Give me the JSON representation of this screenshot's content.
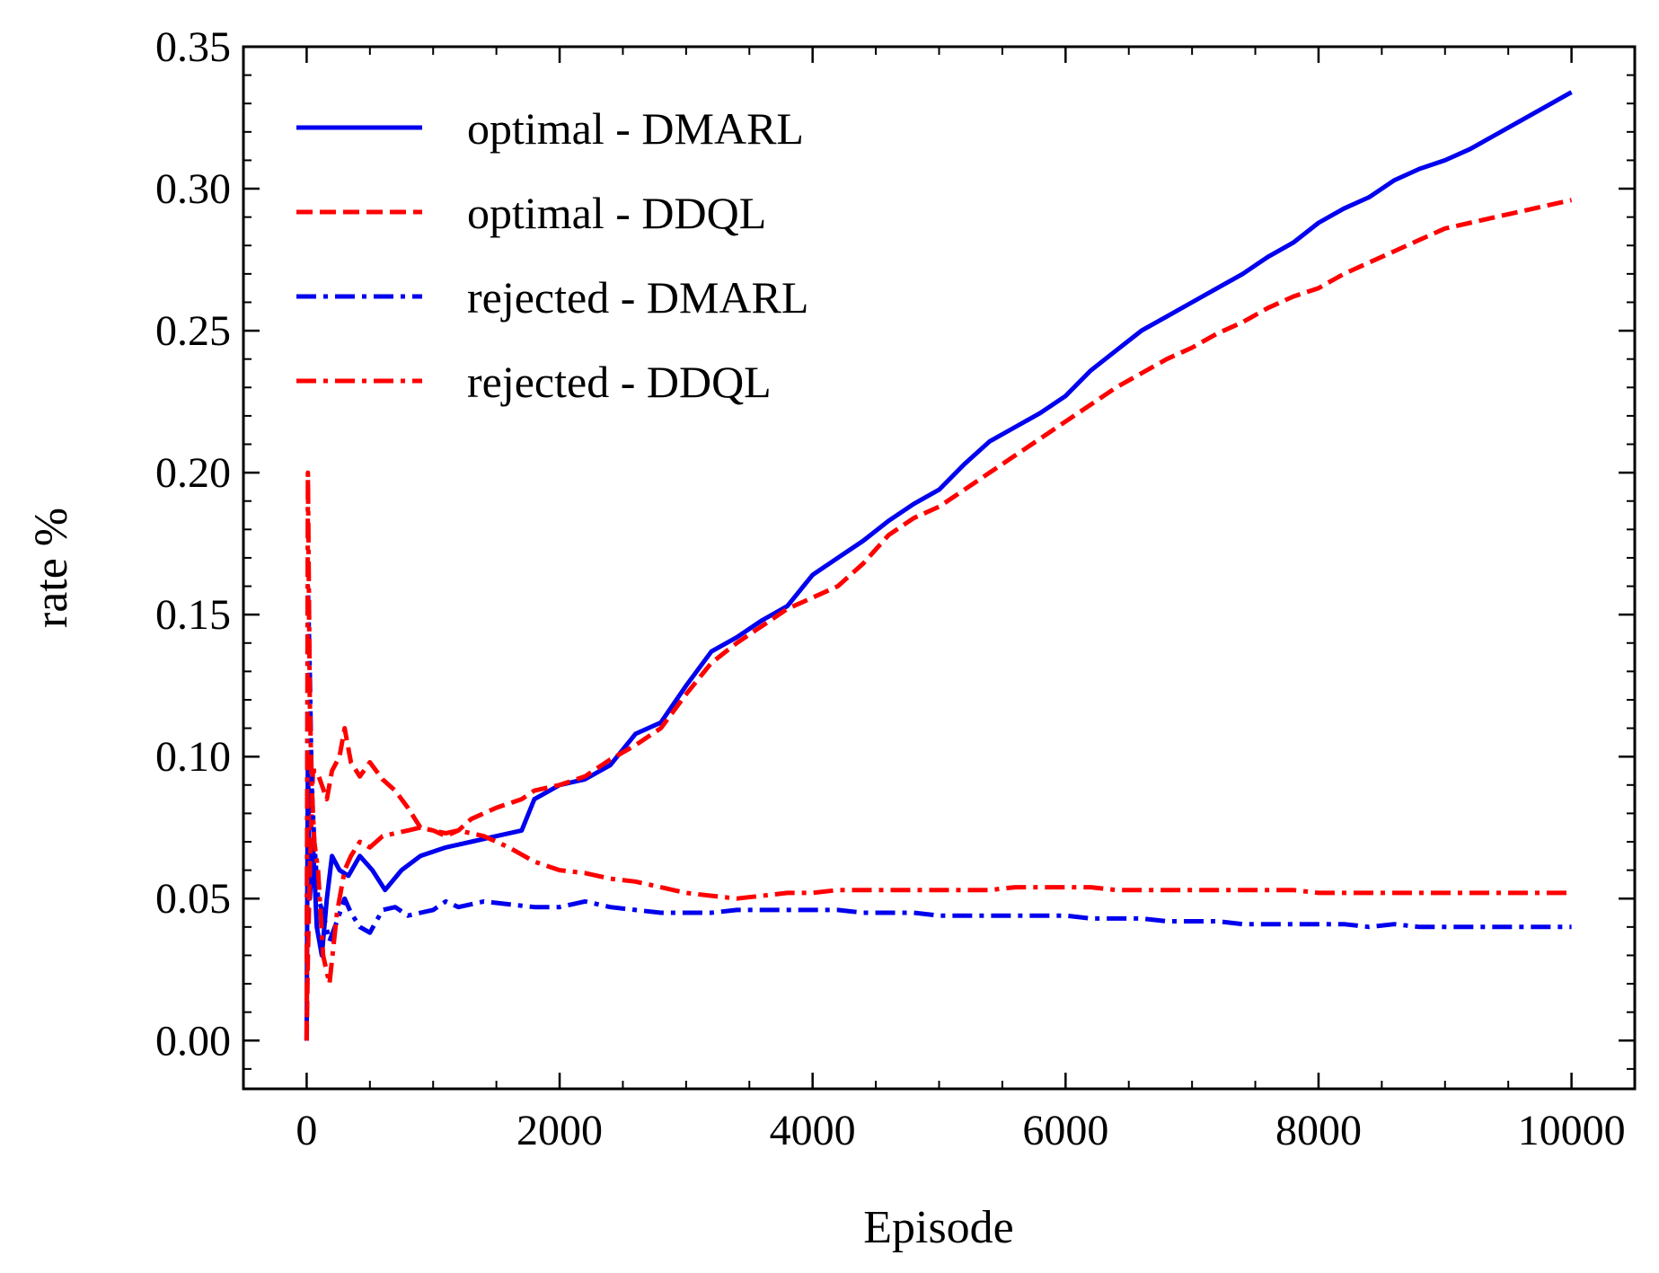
{
  "chart_data": {
    "type": "line",
    "title": "",
    "xlabel": "Episode",
    "ylabel": "rate %",
    "xlim": [
      -500,
      10500
    ],
    "ylim": [
      -0.017,
      0.35
    ],
    "xticks": [
      0,
      2000,
      4000,
      6000,
      8000,
      10000
    ],
    "xtick_labels": [
      "0",
      "2000",
      "4000",
      "6000",
      "8000",
      "10000"
    ],
    "yticks": [
      0.0,
      0.05,
      0.1,
      0.15,
      0.2,
      0.25,
      0.3,
      0.35
    ],
    "ytick_labels": [
      "0.00",
      "0.05",
      "0.10",
      "0.15",
      "0.20",
      "0.25",
      "0.30",
      "0.35"
    ],
    "grid": false,
    "legend_position": "top-left",
    "series": [
      {
        "name": "optimal - DMARL",
        "color": "#0000ee",
        "style": "solid",
        "x": [
          0,
          10,
          25,
          50,
          80,
          120,
          160,
          200,
          260,
          330,
          420,
          520,
          620,
          750,
          900,
          1100,
          1300,
          1500,
          1700,
          1800,
          2000,
          2200,
          2400,
          2600,
          2800,
          3000,
          3200,
          3400,
          3600,
          3800,
          4000,
          4200,
          4400,
          4600,
          4800,
          5000,
          5200,
          5400,
          5600,
          5800,
          6000,
          6200,
          6400,
          6600,
          6800,
          7000,
          7200,
          7400,
          7600,
          7800,
          8000,
          8200,
          8400,
          8600,
          8800,
          9000,
          9200,
          9400,
          9600,
          9800,
          10000
        ],
        "y": [
          0.0,
          0.1,
          0.05,
          0.07,
          0.04,
          0.03,
          0.05,
          0.065,
          0.06,
          0.058,
          0.065,
          0.06,
          0.053,
          0.06,
          0.065,
          0.068,
          0.07,
          0.072,
          0.074,
          0.085,
          0.09,
          0.092,
          0.097,
          0.108,
          0.112,
          0.125,
          0.137,
          0.142,
          0.148,
          0.153,
          0.164,
          0.17,
          0.176,
          0.183,
          0.189,
          0.194,
          0.203,
          0.211,
          0.216,
          0.221,
          0.227,
          0.236,
          0.243,
          0.25,
          0.255,
          0.26,
          0.265,
          0.27,
          0.276,
          0.281,
          0.288,
          0.293,
          0.297,
          0.303,
          0.307,
          0.31,
          0.314,
          0.319,
          0.324,
          0.329,
          0.334
        ]
      },
      {
        "name": "optimal - DDQL",
        "color": "#ff0000",
        "style": "dashed",
        "x": [
          0,
          10,
          25,
          50,
          80,
          120,
          160,
          200,
          260,
          300,
          350,
          420,
          500,
          600,
          700,
          800,
          900,
          1000,
          1100,
          1200,
          1300,
          1500,
          1700,
          1800,
          2000,
          2200,
          2400,
          2600,
          2800,
          3000,
          3200,
          3400,
          3600,
          3800,
          4000,
          4200,
          4400,
          4600,
          4800,
          5000,
          5200,
          5400,
          5600,
          5800,
          6000,
          6200,
          6400,
          6600,
          6800,
          7000,
          7200,
          7400,
          7600,
          7800,
          8000,
          8200,
          8400,
          8600,
          8800,
          9000,
          9200,
          9400,
          9600,
          9800,
          10000
        ],
        "y": [
          0.0,
          0.03,
          0.06,
          0.095,
          0.095,
          0.09,
          0.085,
          0.095,
          0.1,
          0.11,
          0.098,
          0.093,
          0.098,
          0.092,
          0.088,
          0.082,
          0.075,
          0.074,
          0.072,
          0.074,
          0.078,
          0.082,
          0.085,
          0.088,
          0.09,
          0.093,
          0.099,
          0.104,
          0.11,
          0.122,
          0.133,
          0.14,
          0.146,
          0.152,
          0.156,
          0.16,
          0.168,
          0.178,
          0.184,
          0.188,
          0.194,
          0.2,
          0.206,
          0.212,
          0.218,
          0.224,
          0.23,
          0.235,
          0.24,
          0.244,
          0.249,
          0.253,
          0.258,
          0.262,
          0.265,
          0.27,
          0.274,
          0.278,
          0.282,
          0.286,
          0.288,
          0.29,
          0.292,
          0.294,
          0.296
        ]
      },
      {
        "name": "rejected - DMARL",
        "color": "#0000ee",
        "style": "dashdot",
        "x": [
          0,
          10,
          25,
          40,
          60,
          90,
          130,
          180,
          240,
          300,
          350,
          420,
          500,
          600,
          700,
          800,
          900,
          1000,
          1100,
          1200,
          1400,
          1600,
          1800,
          2000,
          2200,
          2400,
          2600,
          2800,
          3000,
          3200,
          3400,
          3600,
          3800,
          4000,
          4200,
          4400,
          4600,
          4800,
          5000,
          5200,
          5400,
          5600,
          5800,
          6000,
          6200,
          6400,
          6600,
          6800,
          7000,
          7200,
          7400,
          7600,
          7800,
          8000,
          8200,
          8400,
          8600,
          8800,
          9000,
          9200,
          9400,
          9600,
          9800,
          10000
        ],
        "y": [
          0.0,
          0.16,
          0.13,
          0.09,
          0.07,
          0.05,
          0.045,
          0.035,
          0.042,
          0.05,
          0.045,
          0.04,
          0.038,
          0.046,
          0.047,
          0.044,
          0.045,
          0.046,
          0.049,
          0.047,
          0.049,
          0.048,
          0.047,
          0.047,
          0.049,
          0.047,
          0.046,
          0.045,
          0.045,
          0.045,
          0.046,
          0.046,
          0.046,
          0.046,
          0.046,
          0.045,
          0.045,
          0.045,
          0.044,
          0.044,
          0.044,
          0.044,
          0.044,
          0.044,
          0.043,
          0.043,
          0.043,
          0.042,
          0.042,
          0.042,
          0.041,
          0.041,
          0.041,
          0.041,
          0.041,
          0.04,
          0.041,
          0.04,
          0.04,
          0.04,
          0.04,
          0.04,
          0.04,
          0.04
        ]
      },
      {
        "name": "rejected - DDQL",
        "color": "#ff0000",
        "style": "dashdot",
        "x": [
          0,
          10,
          25,
          40,
          60,
          90,
          130,
          180,
          240,
          300,
          350,
          420,
          500,
          600,
          700,
          800,
          900,
          1000,
          1100,
          1200,
          1400,
          1600,
          1800,
          2000,
          2200,
          2400,
          2600,
          2800,
          3000,
          3200,
          3400,
          3600,
          3800,
          4000,
          4200,
          4400,
          4600,
          4800,
          5000,
          5200,
          5400,
          5600,
          5800,
          6000,
          6200,
          6400,
          6600,
          6800,
          7000,
          7200,
          7400,
          7600,
          7800,
          8000,
          8200,
          8400,
          8600,
          8800,
          9000,
          9200,
          9400,
          9600,
          9800,
          10000
        ],
        "y": [
          0.0,
          0.2,
          0.12,
          0.09,
          0.07,
          0.06,
          0.03,
          0.02,
          0.045,
          0.06,
          0.065,
          0.07,
          0.068,
          0.072,
          0.073,
          0.074,
          0.075,
          0.074,
          0.073,
          0.074,
          0.072,
          0.068,
          0.063,
          0.06,
          0.059,
          0.057,
          0.056,
          0.054,
          0.052,
          0.051,
          0.05,
          0.051,
          0.052,
          0.052,
          0.053,
          0.053,
          0.053,
          0.053,
          0.053,
          0.053,
          0.053,
          0.054,
          0.054,
          0.054,
          0.054,
          0.053,
          0.053,
          0.053,
          0.053,
          0.053,
          0.053,
          0.053,
          0.053,
          0.052,
          0.052,
          0.052,
          0.052,
          0.052,
          0.052,
          0.052,
          0.052,
          0.052,
          0.052,
          0.052
        ]
      }
    ]
  }
}
